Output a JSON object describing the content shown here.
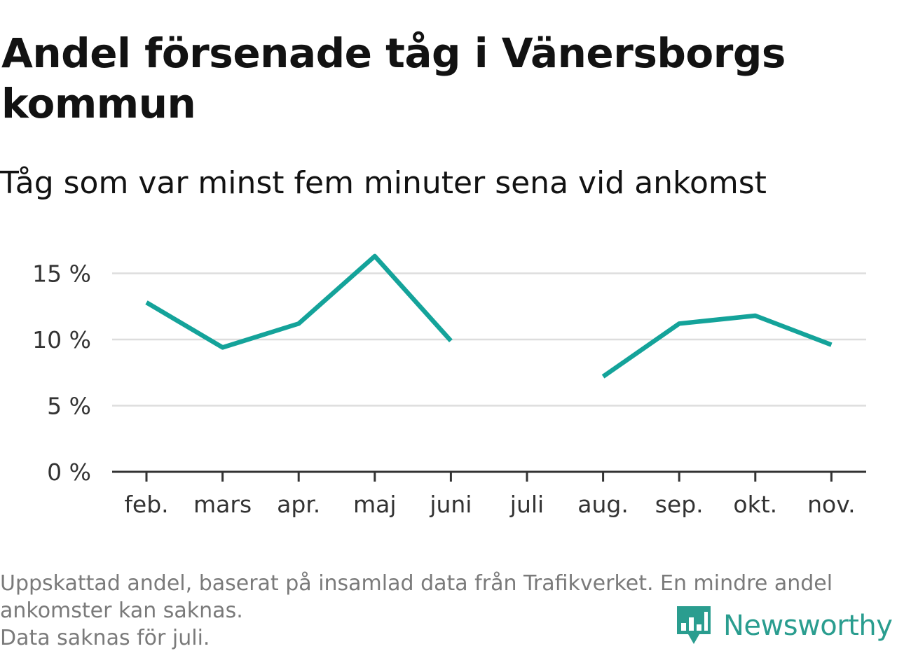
{
  "chart_data": {
    "type": "line",
    "title": "Andel försenade tåg i Vänersborgs kommun",
    "subtitle": "Tåg som var minst fem minuter sena vid ankomst",
    "categories": [
      "feb.",
      "mars",
      "apr.",
      "maj",
      "juni",
      "juli",
      "aug.",
      "sep.",
      "okt.",
      "nov."
    ],
    "series": [
      {
        "values": [
          12.8,
          9.4,
          11.2,
          16.3,
          9.9,
          null,
          7.2,
          11.2,
          11.8,
          9.6
        ],
        "color": "#14a39a"
      }
    ],
    "y_ticks": [
      {
        "value": 0,
        "label": "0 %"
      },
      {
        "value": 5,
        "label": "5 %"
      },
      {
        "value": 10,
        "label": "10 %"
      },
      {
        "value": 15,
        "label": "15 %"
      }
    ],
    "ylim": [
      0,
      17
    ],
    "grid": true,
    "line_color": "#14a39a",
    "grid_color": "#dddddd",
    "axis_color": "#333333"
  },
  "footnote": {
    "line1": "Uppskattad andel, baserat på insamlad data från Trafikverket. En mindre andel",
    "line2": "ankomster kan saknas.",
    "line3": "Data saknas för juli."
  },
  "brand": {
    "name": "Newsworthy",
    "logo_icon": "bar-chart-flag-icon",
    "color": "#2a9d8f"
  }
}
